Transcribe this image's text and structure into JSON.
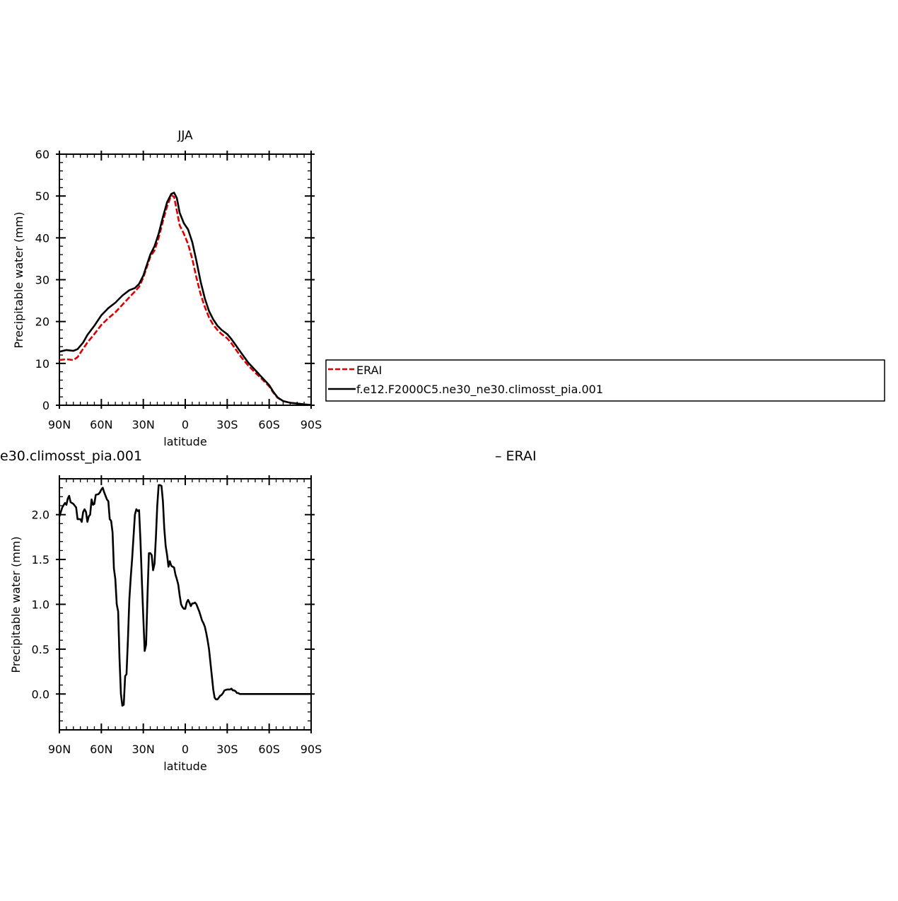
{
  "chart_data": [
    {
      "type": "line",
      "title": "JJA",
      "xlabel": "latitude",
      "ylabel": "Precipitable water (mm)",
      "x_ticks": [
        {
          "value": 90,
          "label": "90N"
        },
        {
          "value": 60,
          "label": "60N"
        },
        {
          "value": 30,
          "label": "30N"
        },
        {
          "value": 0,
          "label": "0"
        },
        {
          "value": -30,
          "label": "30S"
        },
        {
          "value": -60,
          "label": "60S"
        },
        {
          "value": -90,
          "label": "90S"
        }
      ],
      "xlim": [
        90,
        -90
      ],
      "ylim": [
        0,
        60
      ],
      "y_ticks": [
        {
          "value": 0,
          "label": "0"
        },
        {
          "value": 10,
          "label": "10"
        },
        {
          "value": 20,
          "label": "20"
        },
        {
          "value": 30,
          "label": "30"
        },
        {
          "value": 40,
          "label": "40"
        },
        {
          "value": 50,
          "label": "50"
        },
        {
          "value": 60,
          "label": "60"
        }
      ],
      "grid": false,
      "legend_position": "right",
      "series": [
        {
          "name": "ERAI",
          "color": "#dd0000",
          "dash": "dashed",
          "points": [
            [
              90,
              10.8
            ],
            [
              85,
              11.0
            ],
            [
              80,
              10.8
            ],
            [
              77,
              11.5
            ],
            [
              73,
              13.5
            ],
            [
              70,
              15.0
            ],
            [
              65,
              17.0
            ],
            [
              60,
              19.2
            ],
            [
              55,
              20.8
            ],
            [
              50,
              22.2
            ],
            [
              45,
              24.0
            ],
            [
              40,
              25.8
            ],
            [
              36,
              27.2
            ],
            [
              33,
              28.3
            ],
            [
              30,
              30.5
            ],
            [
              27,
              33.5
            ],
            [
              25,
              35.5
            ],
            [
              22,
              37.0
            ],
            [
              19,
              40.0
            ],
            [
              16,
              44.0
            ],
            [
              13,
              47.5
            ],
            [
              10,
              50.2
            ],
            [
              8,
              49.8
            ],
            [
              6,
              46.5
            ],
            [
              4,
              43.0
            ],
            [
              1,
              41.0
            ],
            [
              -2,
              38.5
            ],
            [
              -5,
              35.0
            ],
            [
              -8,
              30.5
            ],
            [
              -11,
              26.5
            ],
            [
              -14,
              23.5
            ],
            [
              -17,
              21.0
            ],
            [
              -20,
              19.2
            ],
            [
              -23,
              18.0
            ],
            [
              -26,
              17.0
            ],
            [
              -30,
              16.0
            ],
            [
              -33,
              14.8
            ],
            [
              -36,
              13.4
            ],
            [
              -40,
              11.5
            ],
            [
              -45,
              9.5
            ],
            [
              -50,
              7.8
            ],
            [
              -55,
              6.2
            ],
            [
              -60,
              4.5
            ],
            [
              -63,
              3.0
            ],
            [
              -66,
              1.8
            ],
            [
              -70,
              1.0
            ],
            [
              -75,
              0.6
            ],
            [
              -80,
              0.4
            ],
            [
              -85,
              0.2
            ],
            [
              -90,
              0.05
            ]
          ]
        },
        {
          "name": "f.e12.F2000C5.ne30_ne30.climosst_pia.001",
          "color": "#000000",
          "dash": "solid",
          "points": [
            [
              90,
              12.8
            ],
            [
              85,
              13.2
            ],
            [
              80,
              13.0
            ],
            [
              77,
              13.4
            ],
            [
              73,
              15.0
            ],
            [
              70,
              16.8
            ],
            [
              65,
              19.0
            ],
            [
              60,
              21.5
            ],
            [
              55,
              23.2
            ],
            [
              50,
              24.5
            ],
            [
              45,
              26.2
            ],
            [
              40,
              27.5
            ],
            [
              36,
              28.0
            ],
            [
              33,
              29.0
            ],
            [
              30,
              31.0
            ],
            [
              27,
              34.0
            ],
            [
              25,
              36.0
            ],
            [
              22,
              38.0
            ],
            [
              19,
              41.0
            ],
            [
              16,
              45.0
            ],
            [
              13,
              48.5
            ],
            [
              10,
              50.5
            ],
            [
              8,
              50.8
            ],
            [
              6,
              49.5
            ],
            [
              4,
              46.0
            ],
            [
              1,
              43.5
            ],
            [
              -2,
              42.0
            ],
            [
              -5,
              39.0
            ],
            [
              -8,
              34.5
            ],
            [
              -11,
              29.5
            ],
            [
              -14,
              25.5
            ],
            [
              -17,
              22.5
            ],
            [
              -20,
              20.5
            ],
            [
              -23,
              19.0
            ],
            [
              -26,
              18.0
            ],
            [
              -30,
              17.0
            ],
            [
              -33,
              15.8
            ],
            [
              -36,
              14.4
            ],
            [
              -40,
              12.5
            ],
            [
              -45,
              10.2
            ],
            [
              -50,
              8.4
            ],
            [
              -55,
              6.6
            ],
            [
              -60,
              4.8
            ],
            [
              -63,
              3.2
            ],
            [
              -66,
              1.9
            ],
            [
              -70,
              1.0
            ],
            [
              -75,
              0.6
            ],
            [
              -80,
              0.4
            ],
            [
              -85,
              0.2
            ],
            [
              -90,
              0.05
            ]
          ]
        }
      ]
    },
    {
      "type": "line",
      "title": "e30.climosst_pia.001",
      "title_right": "– ERAI",
      "xlabel": "latitude",
      "ylabel": "Precipitable water (mm)",
      "x_ticks": [
        {
          "value": 90,
          "label": "90N"
        },
        {
          "value": 60,
          "label": "60N"
        },
        {
          "value": 30,
          "label": "30N"
        },
        {
          "value": 0,
          "label": "0"
        },
        {
          "value": -30,
          "label": "30S"
        },
        {
          "value": -60,
          "label": "60S"
        },
        {
          "value": -90,
          "label": "90S"
        }
      ],
      "xlim": [
        90,
        -90
      ],
      "ylim": [
        -0.4,
        2.4
      ],
      "y_ticks": [
        {
          "value": 0.0,
          "label": "0.0"
        },
        {
          "value": 0.5,
          "label": "0.5"
        },
        {
          "value": 1.0,
          "label": "1.0"
        },
        {
          "value": 1.5,
          "label": "1.5"
        },
        {
          "value": 2.0,
          "label": "2.0"
        }
      ],
      "grid": false,
      "series": [
        {
          "color": "#000000",
          "dash": "solid",
          "points": [
            [
              90,
              1.98
            ],
            [
              88,
              2.08
            ],
            [
              86,
              2.13
            ],
            [
              85,
              2.11
            ],
            [
              84,
              2.18
            ],
            [
              83,
              2.21
            ],
            [
              82,
              2.14
            ],
            [
              80,
              2.12
            ],
            [
              78,
              2.08
            ],
            [
              77,
              1.95
            ],
            [
              75,
              1.95
            ],
            [
              74,
              1.92
            ],
            [
              73,
              2.03
            ],
            [
              72,
              2.06
            ],
            [
              71,
              2.03
            ],
            [
              70,
              1.92
            ],
            [
              69,
              1.98
            ],
            [
              68,
              2.0
            ],
            [
              67,
              2.17
            ],
            [
              66,
              2.11
            ],
            [
              65,
              2.12
            ],
            [
              64,
              2.22
            ],
            [
              62,
              2.23
            ],
            [
              61,
              2.25
            ],
            [
              60,
              2.28
            ],
            [
              59,
              2.3
            ],
            [
              58,
              2.25
            ],
            [
              56,
              2.17
            ],
            [
              55,
              2.15
            ],
            [
              54,
              1.95
            ],
            [
              53,
              1.93
            ],
            [
              52,
              1.8
            ],
            [
              51,
              1.4
            ],
            [
              50,
              1.28
            ],
            [
              49,
              1.0
            ],
            [
              48,
              0.92
            ],
            [
              47,
              0.4
            ],
            [
              46,
              0.0
            ],
            [
              45,
              -0.13
            ],
            [
              44,
              -0.12
            ],
            [
              43,
              0.2
            ],
            [
              42,
              0.22
            ],
            [
              41,
              0.6
            ],
            [
              40,
              1.05
            ],
            [
              39,
              1.3
            ],
            [
              38,
              1.5
            ],
            [
              37,
              1.75
            ],
            [
              36,
              2.0
            ],
            [
              35,
              2.06
            ],
            [
              34,
              2.04
            ],
            [
              33,
              2.05
            ],
            [
              32,
              1.7
            ],
            [
              31,
              1.25
            ],
            [
              30,
              0.85
            ],
            [
              29,
              0.48
            ],
            [
              28,
              0.55
            ],
            [
              27,
              1.1
            ],
            [
              26,
              1.57
            ],
            [
              25,
              1.57
            ],
            [
              24,
              1.55
            ],
            [
              23,
              1.38
            ],
            [
              22,
              1.45
            ],
            [
              21,
              1.75
            ],
            [
              20,
              2.1
            ],
            [
              19,
              2.33
            ],
            [
              18,
              2.33
            ],
            [
              17,
              2.32
            ],
            [
              16,
              2.15
            ],
            [
              15,
              1.85
            ],
            [
              14,
              1.65
            ],
            [
              13,
              1.55
            ],
            [
              12,
              1.42
            ],
            [
              11,
              1.48
            ],
            [
              10,
              1.43
            ],
            [
              9,
              1.42
            ],
            [
              8,
              1.41
            ],
            [
              7,
              1.33
            ],
            [
              6,
              1.28
            ],
            [
              5,
              1.22
            ],
            [
              4,
              1.1
            ],
            [
              3,
              1.0
            ],
            [
              2,
              0.97
            ],
            [
              1,
              0.95
            ],
            [
              0,
              0.95
            ],
            [
              -1,
              1.02
            ],
            [
              -2,
              1.05
            ],
            [
              -3,
              1.02
            ],
            [
              -4,
              0.98
            ],
            [
              -5,
              1.01
            ],
            [
              -6,
              1.01
            ],
            [
              -7,
              1.02
            ],
            [
              -8,
              1.0
            ],
            [
              -9,
              0.96
            ],
            [
              -10,
              0.92
            ],
            [
              -11,
              0.87
            ],
            [
              -12,
              0.82
            ],
            [
              -13,
              0.79
            ],
            [
              -14,
              0.75
            ],
            [
              -15,
              0.68
            ],
            [
              -16,
              0.6
            ],
            [
              -17,
              0.5
            ],
            [
              -18,
              0.35
            ],
            [
              -19,
              0.2
            ],
            [
              -20,
              0.05
            ],
            [
              -21,
              -0.04
            ],
            [
              -22,
              -0.06
            ],
            [
              -23,
              -0.06
            ],
            [
              -24,
              -0.04
            ],
            [
              -25,
              -0.02
            ],
            [
              -26,
              -0.01
            ],
            [
              -27,
              0.01
            ],
            [
              -28,
              0.04
            ],
            [
              -30,
              0.05
            ],
            [
              -32,
              0.05
            ],
            [
              -33,
              0.06
            ],
            [
              -34,
              0.04
            ],
            [
              -35,
              0.04
            ],
            [
              -36,
              0.03
            ],
            [
              -37,
              0.01
            ],
            [
              -38,
              0.01
            ],
            [
              -39,
              0.0
            ],
            [
              -40,
              0.0
            ],
            [
              -41,
              0.0
            ],
            [
              -42,
              0.0
            ],
            [
              -43,
              0.0
            ],
            [
              -45,
              0.0
            ],
            [
              -50,
              0.0
            ],
            [
              -55,
              0.0
            ],
            [
              -60,
              0.0
            ],
            [
              -65,
              0.0
            ],
            [
              -70,
              0.0
            ],
            [
              -75,
              0.0
            ],
            [
              -80,
              0.0
            ],
            [
              -85,
              0.0
            ],
            [
              -90,
              0.0
            ]
          ]
        }
      ]
    }
  ]
}
